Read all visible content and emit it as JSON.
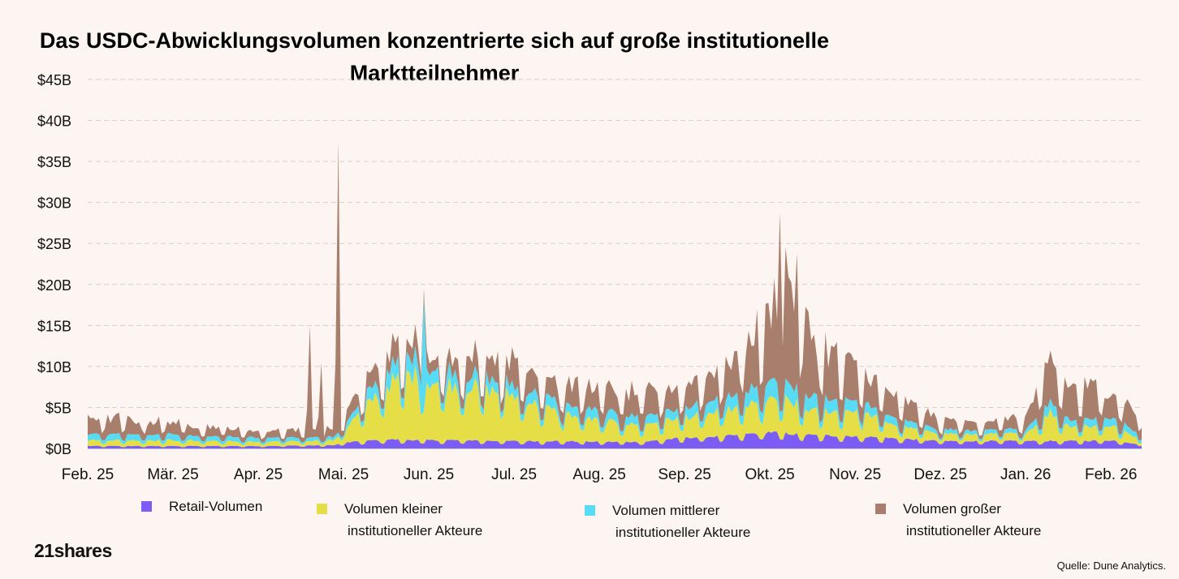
{
  "title_line1": "Das USDC-Abwicklungsvolumen konzentrierte sich auf große institutionelle",
  "title_line2": "Marktteilnehmer",
  "logo": "21shares",
  "source": "Quelle: Dune Analytics.",
  "chart_data": {
    "type": "area",
    "stacked": true,
    "title": "Das USDC-Abwicklungsvolumen konzentrierte sich auf große institutionelle Marktteilnehmer",
    "xlabel": "",
    "ylabel": "",
    "ylim": [
      0,
      45
    ],
    "yticks": [
      0,
      5,
      10,
      15,
      20,
      25,
      30,
      35,
      40,
      45
    ],
    "ytick_labels": [
      "$0B",
      "$5B",
      "$10B",
      "$15B",
      "$20B",
      "$25B",
      "$30B",
      "$35B",
      "$40B",
      "$45B"
    ],
    "xlim": [
      0,
      12.36
    ],
    "xticks": [
      0,
      1,
      2,
      3,
      4,
      5,
      6,
      7,
      8,
      9,
      10,
      11,
      12
    ],
    "xtick_labels": [
      "Feb. 25",
      "Mär. 25",
      "Apr. 25",
      "Mai. 25",
      "Jun. 25",
      "Jul. 25",
      "Aug. 25",
      "Sep. 25",
      "Okt. 25",
      "Nov. 25",
      "Dez. 25",
      "Jan. 26",
      "Feb. 26"
    ],
    "grid": true,
    "legend_position": "bottom",
    "series": [
      {
        "name": "Retail-Volumen",
        "color": "#7b5cf5",
        "line2": "",
        "x": [
          0,
          1,
          2,
          2.9,
          3,
          3.5,
          4,
          4.5,
          5,
          5.5,
          6,
          6.5,
          7,
          7.5,
          8,
          8.2,
          8.5,
          9,
          9.5,
          10,
          10.5,
          11,
          11.5,
          12,
          12.36
        ],
        "values": [
          0.3,
          0.3,
          0.3,
          0.4,
          0.7,
          1.1,
          1.0,
          1.0,
          0.9,
          0.9,
          0.8,
          0.8,
          1.3,
          1.5,
          2.0,
          1.8,
          1.6,
          1.5,
          1.2,
          0.9,
          0.9,
          0.9,
          0.9,
          1.0,
          0.5
        ]
      },
      {
        "name": "Volumen kleiner",
        "line2": "institutioneller Akteure",
        "color": "#e6de46",
        "x": [
          0,
          1,
          2,
          2.9,
          3,
          3.2,
          3.5,
          3.8,
          4,
          4.5,
          5,
          5.5,
          6,
          6.5,
          7,
          7.5,
          8,
          8.2,
          8.5,
          9,
          9.5,
          10,
          10.5,
          11,
          11.3,
          11.5,
          12,
          12.36
        ],
        "values": [
          0.7,
          0.7,
          0.5,
          0.6,
          1.5,
          3.5,
          6.5,
          8.0,
          7.0,
          6.5,
          5.5,
          3.5,
          2.5,
          2.0,
          2.5,
          3.0,
          3.8,
          4.0,
          2.8,
          3.2,
          1.5,
          0.9,
          0.8,
          0.9,
          3.5,
          1.8,
          1.8,
          0.6
        ]
      },
      {
        "name": "Volumen mittlerer",
        "line2": "institutioneller Akteure",
        "color": "#58dcf5",
        "x": [
          0,
          1,
          2,
          2.9,
          3,
          3.5,
          3.8,
          4,
          4.5,
          5,
          5.5,
          6,
          6.5,
          7,
          7.5,
          8,
          8.5,
          9,
          9.5,
          10,
          10.5,
          11,
          11.3,
          11.5,
          12,
          12.36
        ],
        "values": [
          0.8,
          0.7,
          0.5,
          0.4,
          0.6,
          1.8,
          2.2,
          1.8,
          1.5,
          1.3,
          1.2,
          1.1,
          1.0,
          1.2,
          1.6,
          2.2,
          1.6,
          1.3,
          0.8,
          0.5,
          0.5,
          0.5,
          1.3,
          0.8,
          1.0,
          0.6
        ]
      },
      {
        "name": "Volumen großer",
        "line2": "institutioneller Akteure",
        "color": "#a87e6c",
        "x": [
          0,
          1,
          2,
          2.6,
          2.9,
          3,
          3.5,
          4,
          4.5,
          5,
          5.5,
          6,
          6.5,
          7,
          7.5,
          8,
          8.2,
          8.5,
          9,
          9.5,
          10,
          10.5,
          11,
          11.3,
          11.5,
          12,
          12.36
        ],
        "values": [
          2.0,
          1.5,
          0.8,
          1.0,
          1.0,
          1.2,
          2.2,
          1.8,
          2.5,
          3.0,
          2.5,
          2.8,
          2.8,
          2.8,
          4.0,
          8.0,
          14.0,
          7.0,
          4.0,
          2.5,
          1.2,
          1.0,
          1.5,
          5.0,
          4.0,
          3.5,
          2.0
        ]
      }
    ],
    "spikes": [
      {
        "x": 2.62,
        "series": "Volumen großer",
        "total": 15.0
      },
      {
        "x": 2.74,
        "series": "Volumen großer",
        "total": 10.5
      },
      {
        "x": 2.93,
        "series": "Volumen großer",
        "total": 37.5
      },
      {
        "x": 3.95,
        "series": "Volumen mittlerer",
        "total": 19.5
      },
      {
        "x": 8.12,
        "series": "Volumen großer",
        "total": 28.8
      }
    ]
  }
}
